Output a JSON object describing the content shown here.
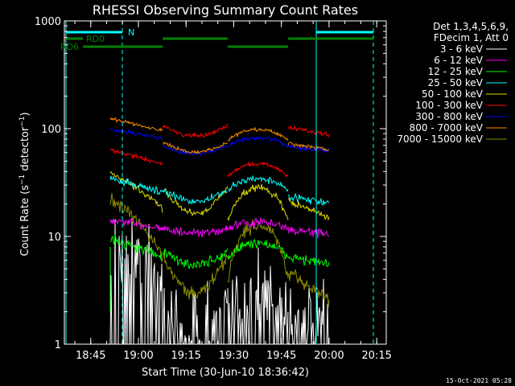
{
  "chart_data": {
    "type": "line",
    "title": "RHESSI Observing Summary Count Rates",
    "xlabel": "Start Time (30-Jun-10 18:36:42)",
    "ylabel": "Count Rate (s⁻¹ detector⁻¹)",
    "ylabel_parts": {
      "main": "Count Rate (s",
      "sup1": "−1",
      "mid": " detector",
      "sup2": "−1",
      "end": ")"
    },
    "y_scale": "log",
    "ylim": [
      1,
      1000
    ],
    "xlim": [
      "18:36:42",
      "20:18:00"
    ],
    "x_ticks": [
      "18:45",
      "19:00",
      "19:15",
      "19:30",
      "19:45",
      "20:00",
      "20:15"
    ],
    "y_ticks": [
      "1",
      "10",
      "100",
      "1000"
    ],
    "legend_header": [
      "Det 1,3,4,5,6,9,",
      "FDecim 1, Att 0"
    ],
    "legend_position": "right",
    "series": [
      {
        "name": "3 - 6 keV",
        "color": "#ffffff"
      },
      {
        "name": "6 - 12 keV",
        "color": "#ff00ff"
      },
      {
        "name": "12 - 25 keV",
        "color": "#00ff00"
      },
      {
        "name": "25 - 50 keV",
        "color": "#00ffff"
      },
      {
        "name": "50 - 100 keV",
        "color": "#dddd00"
      },
      {
        "name": "100 - 300 keV",
        "color": "#ff0000"
      },
      {
        "name": "300 - 800 keV",
        "color": "#0000ff"
      },
      {
        "name": "800 - 7000 keV",
        "color": "#ff8c00"
      },
      {
        "name": "7000 - 15000 keV",
        "color": "#8b8b00"
      }
    ],
    "annotations": {
      "night_label": "N",
      "rd0_label": "RD0",
      "rd6_label": "RD6",
      "night_color": "#00ffff",
      "rd_color": "#008000"
    },
    "timestamp": "15-Oct-2021 05:28"
  }
}
